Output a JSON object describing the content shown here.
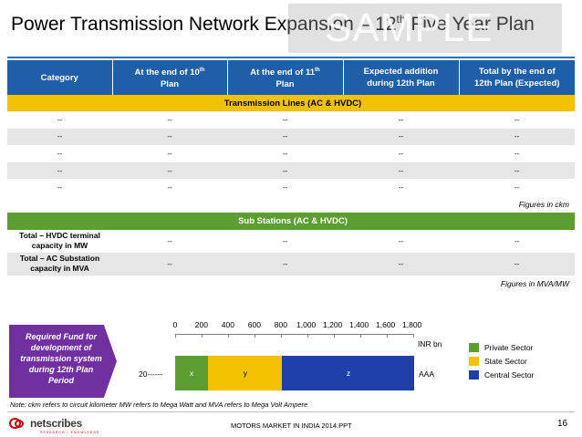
{
  "title": {
    "main": "Power Transmission Network Expansion – 12",
    "sup": "th",
    "end": " Five Year Plan"
  },
  "watermark": "SAMPLE",
  "table": {
    "headers": [
      {
        "text": "Category",
        "sup": "",
        "rest": ""
      },
      {
        "text": "At the end of 10",
        "sup": "th",
        "rest": "Plan"
      },
      {
        "text": "At the end of 11",
        "sup": "th",
        "rest": "Plan"
      },
      {
        "text": "Expected addition",
        "sup": "",
        "rest": "during 12th Plan"
      },
      {
        "text": "Total by the end of",
        "sup": "",
        "rest": "12th Plan (Expected)"
      }
    ],
    "section1": "Transmission Lines (AC & HVDC)",
    "lines_rows": [
      [
        "--",
        "--",
        "--",
        "--",
        "--"
      ],
      [
        "--",
        "--",
        "--",
        "--",
        "--"
      ],
      [
        "--",
        "--",
        "--",
        "--",
        "--"
      ],
      [
        "--",
        "--",
        "--",
        "--",
        "--"
      ],
      [
        "--",
        "--",
        "--",
        "--",
        "--"
      ]
    ],
    "note1": "Figures in ckm",
    "section2": "Sub Stations (AC & HVDC)",
    "sub_rows": [
      {
        "label1": "Total – HVDC terminal",
        "label2": "capacity in MW",
        "values": [
          "--",
          "--",
          "--",
          "--"
        ]
      },
      {
        "label1": "Total – AC Substation",
        "label2": "capacity in MVA",
        "values": [
          "--",
          "--",
          "--",
          "--"
        ]
      }
    ],
    "note2": "Figures in MVA/MW"
  },
  "fund_box": [
    "Required Fund for",
    "development of",
    "transmission system",
    "during 12th Plan",
    "Period"
  ],
  "chart_data": {
    "type": "bar",
    "orientation": "horizontal",
    "stacked": true,
    "categories": [
      "20------"
    ],
    "right_label": "AAA",
    "xlabel": "INR bn",
    "xlim": [
      0,
      1800
    ],
    "xticks": [
      "0",
      "200",
      "400",
      "600",
      "800",
      "1,000",
      "1,200",
      "1,400",
      "1,600",
      "1,800"
    ],
    "series": [
      {
        "name": "Private Sector",
        "label": "x",
        "values": [
          250
        ],
        "color": "#5c9e31"
      },
      {
        "name": "State Sector",
        "label": "y",
        "values": [
          560
        ],
        "color": "#f2c200"
      },
      {
        "name": "Central Sector",
        "label": "z",
        "values": [
          1000
        ],
        "color": "#1f3fa8"
      }
    ],
    "legend_position": "right"
  },
  "footnote": "Note: ckm refers to circuit kilometer MW refers to Mega Watt and MVA refers to Mega Volt Ampere",
  "footer": {
    "logo": "netscribes",
    "logo_sub": "RESEARCH  •  KNOWLEDGE",
    "center": "MOTORS MARKET IN INDIA 2014.PPT",
    "page": "16"
  }
}
